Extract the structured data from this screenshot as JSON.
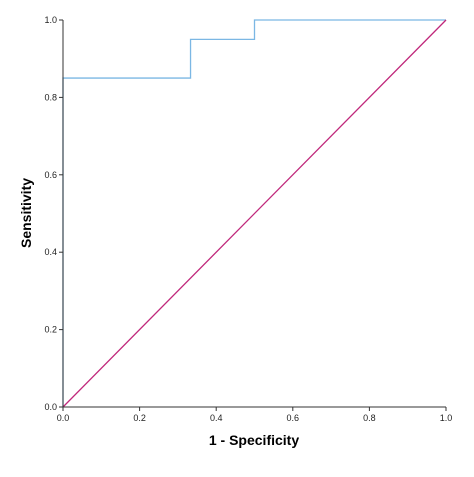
{
  "chart_data": {
    "type": "line",
    "title": "",
    "xlabel": "1 - Specificity",
    "ylabel": "Sensitivity",
    "xlim": [
      0,
      1
    ],
    "ylim": [
      0,
      1
    ],
    "x_ticks": [
      "0.0",
      "0.2",
      "0.4",
      "0.6",
      "0.8",
      "1.0"
    ],
    "y_ticks": [
      "0.0",
      "0.2",
      "0.4",
      "0.6",
      "0.8",
      "1.0"
    ],
    "grid": false,
    "series": [
      {
        "color": "#7bb7e4",
        "step": true,
        "points": [
          [
            0,
            0
          ],
          [
            0,
            0.85
          ],
          [
            0.333,
            0.85
          ],
          [
            0.333,
            0.95
          ],
          [
            0.5,
            0.95
          ],
          [
            0.5,
            1.0
          ],
          [
            1.0,
            1.0
          ]
        ]
      },
      {
        "color": "#c0287b",
        "step": false,
        "points": [
          [
            0,
            0
          ],
          [
            1.0,
            1.0
          ]
        ]
      }
    ]
  }
}
